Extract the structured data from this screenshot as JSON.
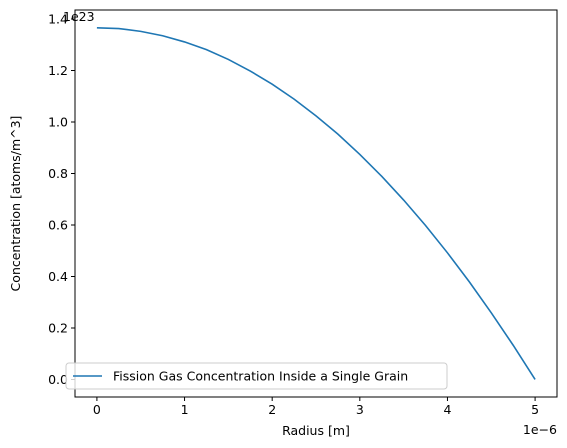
{
  "chart_data": {
    "type": "line",
    "title": "",
    "xlabel": "Radius [m]",
    "ylabel": "Concentration [atoms/m^3]",
    "x_offset_label": "1e−6",
    "y_offset_label": "1e23",
    "x_scale": 1e-06,
    "y_scale": 1e+23,
    "xlim": [
      -0.25,
      5.25
    ],
    "ylim": [
      -0.068,
      1.435
    ],
    "x_ticks": [
      0,
      1,
      2,
      3,
      4,
      5
    ],
    "x_tick_labels": [
      "0",
      "1",
      "2",
      "3",
      "4",
      "5"
    ],
    "y_ticks": [
      0.0,
      0.2,
      0.4,
      0.6,
      0.8,
      1.0,
      1.2,
      1.4
    ],
    "y_tick_labels": [
      "0.0",
      "0.2",
      "0.4",
      "0.6",
      "0.8",
      "1.0",
      "1.2",
      "1.4"
    ],
    "grid": false,
    "legend_position": "lower-left",
    "series": [
      {
        "name": "Fission Gas Concentration Inside a Single Grain",
        "color": "#1f77b4",
        "x": [
          0,
          0.25,
          0.5,
          0.75,
          1.0,
          1.25,
          1.5,
          1.75,
          2.0,
          2.25,
          2.5,
          2.75,
          3.0,
          3.25,
          3.5,
          3.75,
          4.0,
          4.25,
          4.5,
          4.75,
          5.0
        ],
        "y": [
          1.366,
          1.363,
          1.352,
          1.335,
          1.311,
          1.281,
          1.243,
          1.198,
          1.147,
          1.089,
          1.024,
          0.953,
          0.874,
          0.789,
          0.697,
          0.598,
          0.492,
          0.379,
          0.259,
          0.133,
          0.0
        ]
      }
    ]
  }
}
